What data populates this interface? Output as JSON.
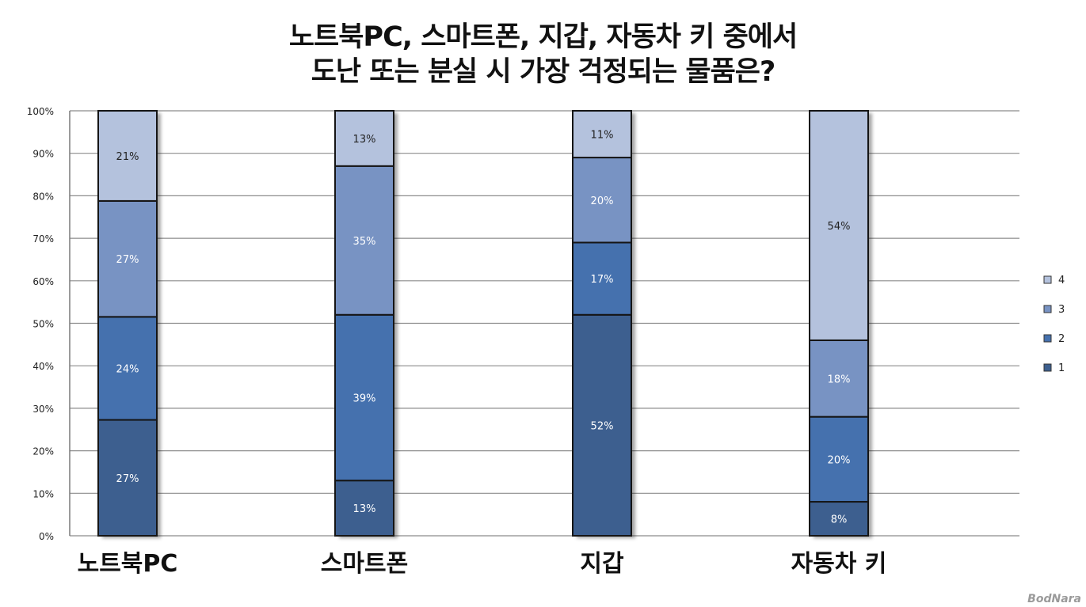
{
  "title": {
    "line1": "노트북PC, 스마트폰, 지갑, 자동차 키 중에서",
    "line2": "도난 또는 분실 시 가장 걱정되는 물품은?"
  },
  "watermark": "BodNara",
  "chart_data": {
    "type": "bar",
    "stacked": true,
    "normalized": true,
    "categories": [
      "노트북PC",
      "스마트폰",
      "지갑",
      "자동차 키"
    ],
    "series": [
      {
        "name": "1",
        "color": "#3d5f8f",
        "values": [
          27,
          13,
          52,
          8
        ]
      },
      {
        "name": "2",
        "color": "#4571ae",
        "values": [
          24,
          39,
          17,
          20
        ]
      },
      {
        "name": "3",
        "color": "#7893c3",
        "values": [
          27,
          35,
          20,
          18
        ]
      },
      {
        "name": "4",
        "color": "#b4c2dd",
        "values": [
          21,
          13,
          11,
          54
        ]
      }
    ],
    "data_labels": true,
    "ylim": [
      0,
      100
    ],
    "yticks": [
      "0%",
      "10%",
      "20%",
      "30%",
      "40%",
      "50%",
      "60%",
      "70%",
      "80%",
      "90%",
      "100%"
    ],
    "grid": true,
    "legend": "right",
    "legend_order": [
      "4",
      "3",
      "2",
      "1"
    ]
  }
}
